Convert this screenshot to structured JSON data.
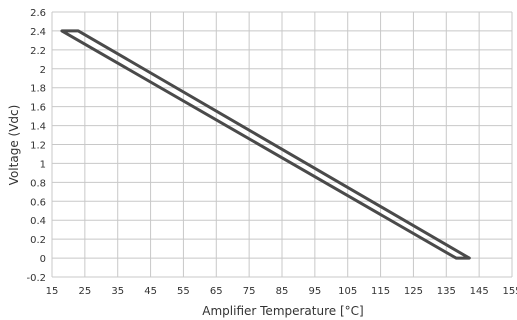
{
  "chart_data": {
    "type": "line",
    "title": "",
    "xlabel": "Amplifier Temperature [°C]",
    "ylabel": "Voltage (Vdc)",
    "xlim": [
      15,
      155
    ],
    "ylim": [
      -0.2,
      2.6
    ],
    "x_ticks": [
      15,
      25,
      35,
      45,
      55,
      65,
      75,
      85,
      95,
      105,
      115,
      125,
      135,
      145,
      155
    ],
    "y_ticks": [
      -0.2,
      0,
      0.2,
      0.4,
      0.6,
      0.8,
      1,
      1.2,
      1.4,
      1.6,
      1.8,
      2,
      2.2,
      2.4,
      2.6
    ],
    "grid": true,
    "legend": "none",
    "series": [
      {
        "closed": true,
        "color": "#4a4a4a",
        "points": [
          [
            18,
            2.4
          ],
          [
            23,
            2.4
          ],
          [
            142,
            0
          ],
          [
            138,
            0
          ],
          [
            18,
            2.4
          ]
        ]
      }
    ]
  }
}
